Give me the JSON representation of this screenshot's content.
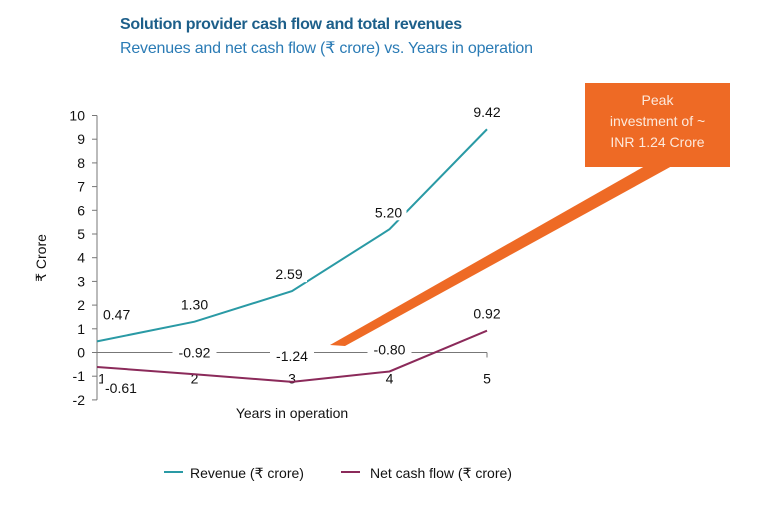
{
  "chart_data": {
    "type": "line",
    "title": "Solution provider cash flow and total revenues",
    "subtitle": "Revenues and net cash flow (₹ crore) vs. Years in operation",
    "xlabel": "Years in operation",
    "ylabel": "₹ Crore",
    "x": [
      1,
      2,
      3,
      4,
      5
    ],
    "xticks": [
      "1",
      "2",
      "3",
      "4",
      "5"
    ],
    "ylim": [
      -2,
      10
    ],
    "yticks": [
      "-2",
      "-1",
      "0",
      "1",
      "2",
      "3",
      "4",
      "5",
      "6",
      "7",
      "8",
      "9",
      "10"
    ],
    "grid": false,
    "legend": "bottom",
    "series": [
      {
        "name": "Revenue (₹ crore)",
        "values": [
          0.47,
          1.3,
          2.59,
          5.2,
          9.42
        ],
        "labels": [
          "0.47",
          "1.30",
          "2.59",
          "5.20",
          "9.42"
        ],
        "color": "#2a9aa5"
      },
      {
        "name": "Net cash flow (₹ crore)",
        "values": [
          -0.61,
          -0.92,
          -1.24,
          -0.8,
          0.92
        ],
        "labels": [
          "-0.61",
          "-0.92",
          "-1.24",
          "-0.80",
          "0.92"
        ],
        "color": "#8b2a5a"
      }
    ],
    "annotation": {
      "text": [
        "Peak",
        "investment of ~",
        "INR 1.24 Crore"
      ],
      "color": "#ee6a25"
    }
  }
}
